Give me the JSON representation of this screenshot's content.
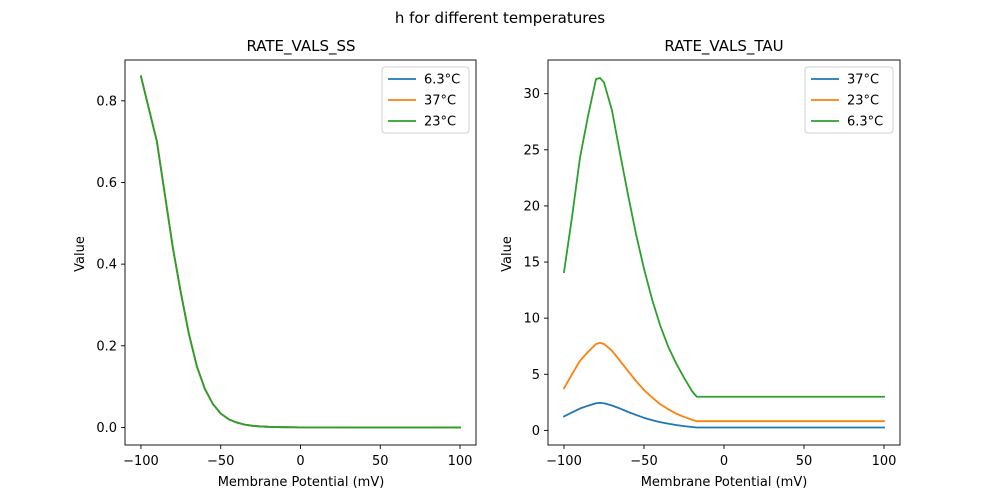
{
  "figure": {
    "suptitle": "h for different temperatures"
  },
  "chart_data": [
    {
      "type": "line",
      "title": "RATE_VALS_SS",
      "xlabel": "Membrane Potential (mV)",
      "ylabel": "Value",
      "xlim": [
        -110,
        110
      ],
      "ylim": [
        -0.043,
        0.9
      ],
      "xticks": [
        -100,
        -50,
        0,
        50,
        100
      ],
      "xtick_labels": [
        "−100",
        "−50",
        "0",
        "50",
        "100"
      ],
      "yticks": [
        0.0,
        0.2,
        0.4,
        0.6,
        0.8
      ],
      "ytick_labels": [
        "0.0",
        "0.2",
        "0.4",
        "0.6",
        "0.8"
      ],
      "grid": false,
      "legend_position": "top-right",
      "series": [
        {
          "name": "6.3°C",
          "color": "#1f77b4",
          "x": [
            -100,
            -95,
            -90,
            -85,
            -80,
            -75,
            -70,
            -65,
            -60,
            -55,
            -50,
            -45,
            -40,
            -35,
            -30,
            -25,
            -20,
            -15,
            -10,
            -5,
            0,
            10,
            20,
            30,
            40,
            50,
            60,
            70,
            80,
            90,
            100
          ],
          "y": [
            0.86,
            0.78,
            0.7,
            0.57,
            0.44,
            0.33,
            0.23,
            0.15,
            0.095,
            0.058,
            0.034,
            0.02,
            0.012,
            0.007,
            0.004,
            0.0025,
            0.0015,
            0.001,
            0.0006,
            0.0004,
            0.0002,
            0.0001,
            0.0001,
            0,
            0,
            0,
            0,
            0,
            0,
            0,
            0
          ]
        },
        {
          "name": "37°C",
          "color": "#ff7f0e",
          "x": [
            -100,
            -95,
            -90,
            -85,
            -80,
            -75,
            -70,
            -65,
            -60,
            -55,
            -50,
            -45,
            -40,
            -35,
            -30,
            -25,
            -20,
            -15,
            -10,
            -5,
            0,
            10,
            20,
            30,
            40,
            50,
            60,
            70,
            80,
            90,
            100
          ],
          "y": [
            0.86,
            0.78,
            0.7,
            0.57,
            0.44,
            0.33,
            0.23,
            0.15,
            0.095,
            0.058,
            0.034,
            0.02,
            0.012,
            0.007,
            0.004,
            0.0025,
            0.0015,
            0.001,
            0.0006,
            0.0004,
            0.0002,
            0.0001,
            0.0001,
            0,
            0,
            0,
            0,
            0,
            0,
            0,
            0
          ]
        },
        {
          "name": "23°C",
          "color": "#2ca02c",
          "x": [
            -100,
            -95,
            -90,
            -85,
            -80,
            -75,
            -70,
            -65,
            -60,
            -55,
            -50,
            -45,
            -40,
            -35,
            -30,
            -25,
            -20,
            -15,
            -10,
            -5,
            0,
            10,
            20,
            30,
            40,
            50,
            60,
            70,
            80,
            90,
            100
          ],
          "y": [
            0.86,
            0.78,
            0.7,
            0.57,
            0.44,
            0.33,
            0.23,
            0.15,
            0.095,
            0.058,
            0.034,
            0.02,
            0.012,
            0.007,
            0.004,
            0.0025,
            0.0015,
            0.001,
            0.0006,
            0.0004,
            0.0002,
            0.0001,
            0.0001,
            0,
            0,
            0,
            0,
            0,
            0,
            0,
            0
          ]
        }
      ]
    },
    {
      "type": "line",
      "title": "RATE_VALS_TAU",
      "xlabel": "Membrane Potential (mV)",
      "ylabel": "Value",
      "xlim": [
        -110,
        110
      ],
      "ylim": [
        -1.3,
        33
      ],
      "xticks": [
        -100,
        -50,
        0,
        50,
        100
      ],
      "xtick_labels": [
        "−100",
        "−50",
        "0",
        "50",
        "100"
      ],
      "yticks": [
        0,
        5,
        10,
        15,
        20,
        25,
        30
      ],
      "ytick_labels": [
        "0",
        "5",
        "10",
        "15",
        "20",
        "25",
        "30"
      ],
      "grid": false,
      "legend_position": "top-right",
      "series": [
        {
          "name": "37°C",
          "color": "#1f77b4",
          "x": [
            -100,
            -95,
            -90,
            -85,
            -80,
            -77.5,
            -75,
            -70,
            -65,
            -60,
            -55,
            -50,
            -45,
            -40,
            -35,
            -30,
            -25,
            -20,
            -17,
            -15,
            0,
            20,
            40,
            60,
            80,
            100
          ],
          "y": [
            1.25,
            1.6,
            1.95,
            2.2,
            2.42,
            2.45,
            2.42,
            2.22,
            1.95,
            1.65,
            1.38,
            1.12,
            0.92,
            0.74,
            0.6,
            0.48,
            0.38,
            0.3,
            0.26,
            0.26,
            0.26,
            0.26,
            0.26,
            0.26,
            0.26,
            0.26
          ]
        },
        {
          "name": "23°C",
          "color": "#ff7f0e",
          "x": [
            -100,
            -95,
            -90,
            -85,
            -80,
            -77.5,
            -75,
            -70,
            -65,
            -60,
            -55,
            -50,
            -45,
            -40,
            -35,
            -30,
            -25,
            -20,
            -17,
            -15,
            0,
            20,
            40,
            60,
            80,
            100
          ],
          "y": [
            3.75,
            5.0,
            6.2,
            7.0,
            7.7,
            7.8,
            7.7,
            7.1,
            6.2,
            5.3,
            4.4,
            3.6,
            2.95,
            2.35,
            1.9,
            1.5,
            1.2,
            0.95,
            0.82,
            0.82,
            0.82,
            0.82,
            0.82,
            0.82,
            0.82,
            0.82
          ]
        },
        {
          "name": "6.3°C",
          "color": "#2ca02c",
          "x": [
            -100,
            -95,
            -90,
            -85,
            -80,
            -77.5,
            -75,
            -70,
            -65,
            -60,
            -55,
            -50,
            -45,
            -40,
            -35,
            -30,
            -25,
            -20,
            -17,
            -15,
            0,
            20,
            40,
            60,
            80,
            100
          ],
          "y": [
            14.1,
            19.0,
            24.3,
            28.0,
            31.3,
            31.4,
            31.0,
            28.5,
            24.7,
            21.0,
            17.5,
            14.4,
            11.7,
            9.4,
            7.5,
            6.0,
            4.7,
            3.5,
            3.0,
            3.0,
            3.0,
            3.0,
            3.0,
            3.0,
            3.0,
            3.0
          ]
        }
      ]
    }
  ]
}
